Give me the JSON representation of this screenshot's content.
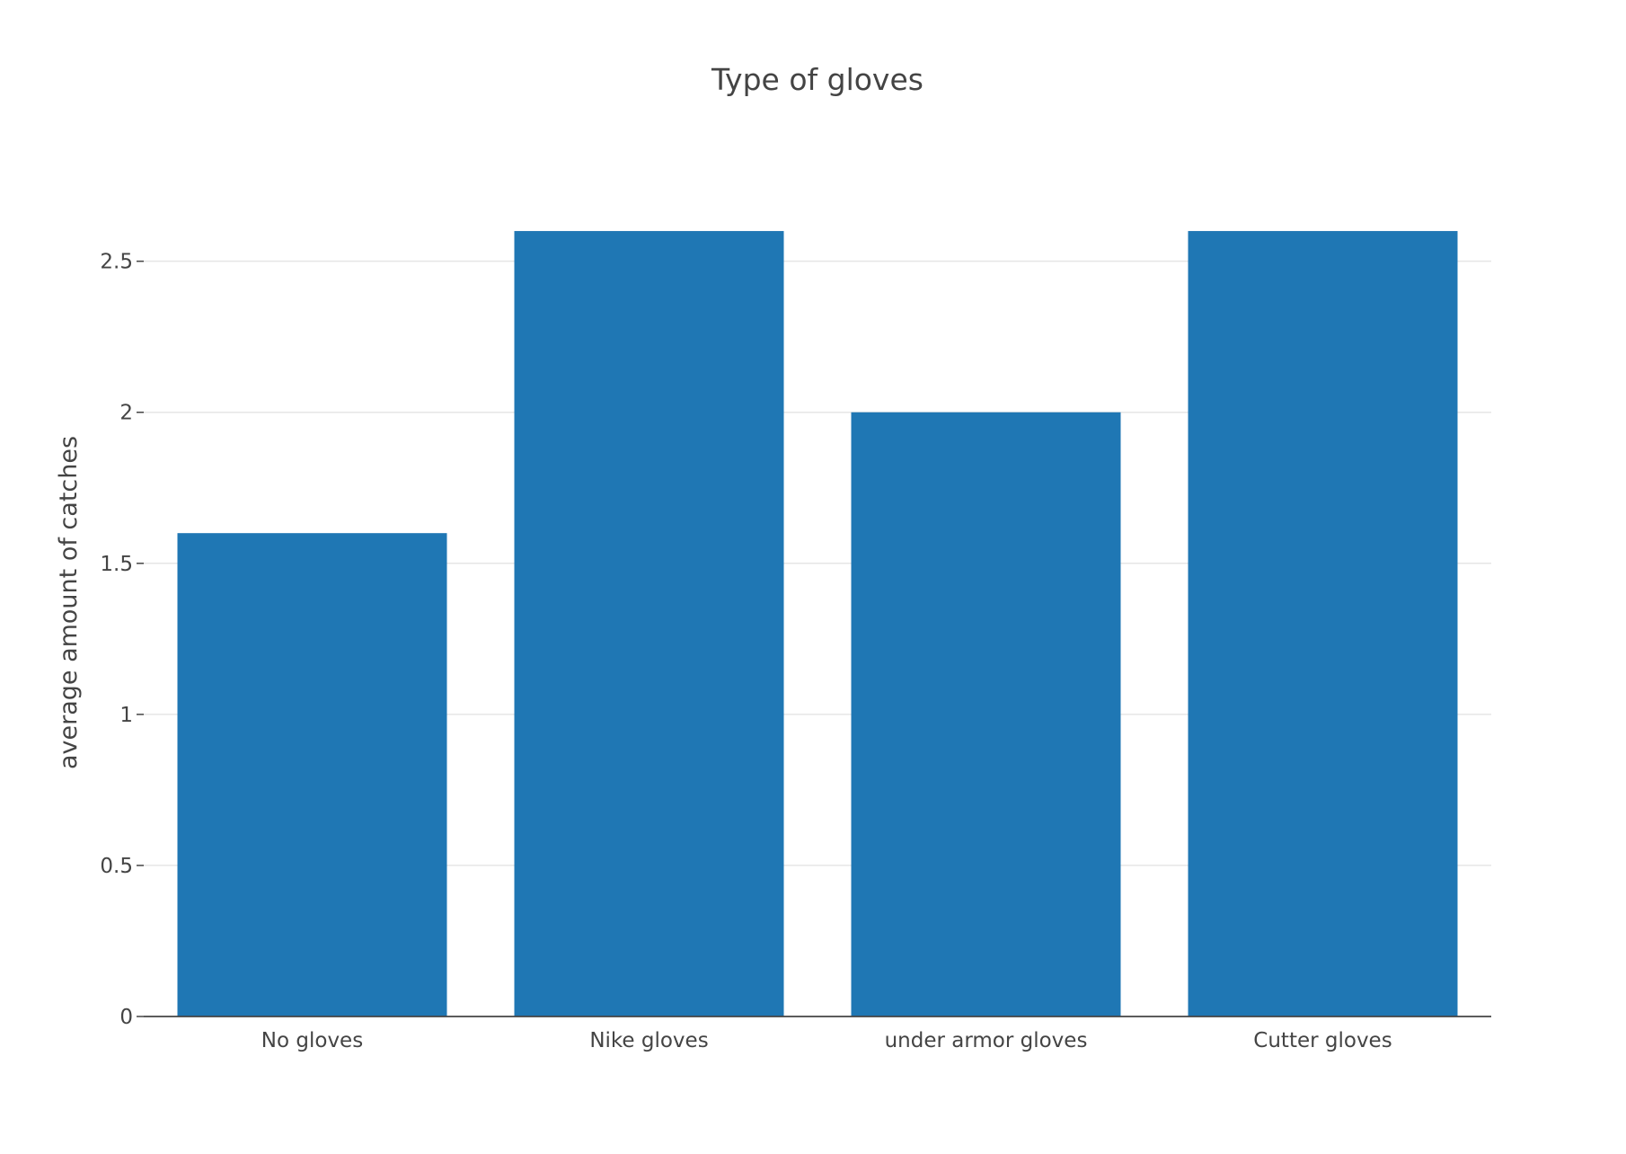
{
  "chart_data": {
    "type": "bar",
    "title": "Type of gloves",
    "xlabel": "",
    "ylabel": "average amount of catches",
    "categories": [
      "No gloves",
      "Nike gloves",
      "under armor gloves",
      "Cutter gloves"
    ],
    "values": [
      1.6,
      2.6,
      2.0,
      2.6
    ],
    "ylim": [
      0,
      2.74
    ],
    "yticks": [
      0,
      0.5,
      1,
      1.5,
      2,
      2.5
    ],
    "ytick_labels": [
      "0",
      "0.5",
      "1",
      "1.5",
      "2",
      "2.5"
    ],
    "grid": true,
    "legend": "none",
    "colors": {
      "bar": "#1f77b4",
      "grid": "#e6e6e6",
      "text": "#444444"
    }
  }
}
